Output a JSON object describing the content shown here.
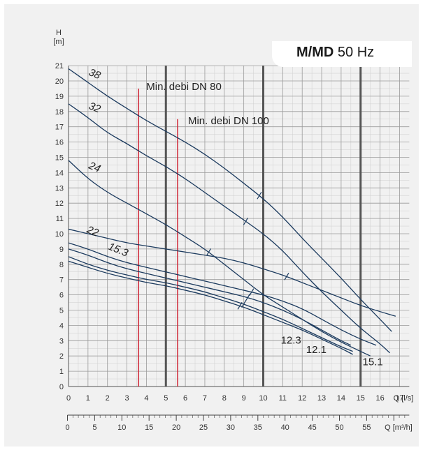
{
  "title": {
    "bold": "M/MD",
    "rest": "50 Hz"
  },
  "chart_data": {
    "type": "line",
    "y_axis": {
      "label_top": "H",
      "label_unit": "[m]",
      "min": 0,
      "max": 21,
      "ticks": [
        0,
        1,
        2,
        3,
        4,
        5,
        6,
        7,
        8,
        9,
        10,
        11,
        12,
        13,
        14,
        15,
        16,
        17,
        18,
        19,
        20,
        21
      ]
    },
    "x_axis_primary": {
      "label": "Q [l/s]",
      "min": 0,
      "max": 17.5,
      "ticks": [
        "0",
        "1",
        "2",
        "3",
        "4",
        "5",
        "6",
        "7",
        "8",
        "9",
        "10",
        "11",
        "12",
        "13",
        "14",
        "15",
        "16",
        "17"
      ]
    },
    "x_axis_secondary": {
      "label": "Q [m³/h]",
      "ticks": [
        "0",
        "5",
        "10",
        "15",
        "20",
        "25",
        "30",
        "35",
        "40",
        "45",
        "50",
        "55"
      ]
    },
    "min_flow_lines": [
      {
        "label": "Min. debi DN 80",
        "x": 3.6,
        "y_top": 19.5
      },
      {
        "label": "Min. debi DN 100",
        "x": 5.6,
        "y_top": 17.5
      }
    ],
    "series": [
      {
        "name": "38",
        "bep_x": 9.8,
        "x": [
          0,
          1,
          2,
          3,
          4,
          5,
          6,
          7,
          8,
          9,
          10,
          11,
          12,
          13,
          14,
          15,
          16,
          16.6
        ],
        "y": [
          20.8,
          19.9,
          19.0,
          18.2,
          17.4,
          16.7,
          16.0,
          15.2,
          14.3,
          13.3,
          12.3,
          11.1,
          9.7,
          8.4,
          7.1,
          5.7,
          4.4,
          3.6
        ]
      },
      {
        "name": "32",
        "bep_x": 9.1,
        "x": [
          0,
          1,
          2,
          3,
          4,
          5,
          6,
          7,
          8,
          9,
          10,
          11,
          12,
          13,
          14,
          15,
          16,
          16.5
        ],
        "y": [
          18.5,
          17.6,
          16.6,
          15.9,
          15.1,
          14.4,
          13.6,
          12.7,
          11.8,
          10.9,
          10.0,
          8.9,
          7.5,
          6.2,
          5.0,
          3.8,
          2.8,
          2.2
        ]
      },
      {
        "name": "24",
        "bep_x": 7.2,
        "x": [
          0,
          1,
          2,
          3,
          4,
          5,
          6,
          7,
          8,
          9,
          10,
          11,
          12,
          13,
          14,
          15,
          15.5
        ],
        "y": [
          14.8,
          13.6,
          12.7,
          12.0,
          11.3,
          10.6,
          9.8,
          9.0,
          8.0,
          7.0,
          6.0,
          5.2,
          4.4,
          3.6,
          2.9,
          2.3,
          2.0
        ]
      },
      {
        "name": "22",
        "bep_x": 11.2,
        "x": [
          0,
          1,
          2,
          3,
          4,
          5,
          6,
          7,
          8,
          9,
          10,
          11,
          12,
          13,
          14,
          15,
          16,
          16.8
        ],
        "y": [
          10.3,
          10.0,
          9.7,
          9.4,
          9.2,
          9.0,
          8.8,
          8.6,
          8.4,
          8.1,
          7.7,
          7.3,
          6.8,
          6.3,
          5.8,
          5.3,
          4.9,
          4.6
        ]
      },
      {
        "name": "15.3",
        "bep_x": 9.4,
        "x": [
          0,
          1,
          2,
          3,
          4,
          5,
          6,
          7,
          8,
          9,
          10,
          11,
          12,
          13,
          14,
          15,
          15.8
        ],
        "y": [
          9.4,
          9.0,
          8.5,
          8.1,
          7.8,
          7.5,
          7.2,
          6.9,
          6.6,
          6.3,
          6.0,
          5.6,
          5.1,
          4.4,
          3.7,
          3.1,
          2.7
        ]
      },
      {
        "name": "15.1",
        "bep_x": 9.2,
        "x": [
          0,
          1,
          2,
          3,
          4,
          5,
          6,
          7,
          8,
          9,
          10,
          11,
          12,
          13,
          14,
          14.5
        ],
        "y": [
          9.0,
          8.6,
          8.1,
          7.7,
          7.4,
          7.1,
          6.8,
          6.5,
          6.2,
          5.9,
          5.5,
          5.0,
          4.4,
          3.7,
          3.0,
          2.7
        ]
      },
      {
        "name": "12.3",
        "bep_x": 9.0,
        "x": [
          0,
          1,
          2,
          3,
          4,
          5,
          6,
          7,
          8,
          9,
          10,
          11,
          12,
          13,
          14,
          14.6
        ],
        "y": [
          8.5,
          8.0,
          7.6,
          7.3,
          7.0,
          6.8,
          6.5,
          6.2,
          5.8,
          5.4,
          4.9,
          4.4,
          3.8,
          3.2,
          2.6,
          2.3
        ]
      },
      {
        "name": "12.1",
        "bep_x": 8.8,
        "x": [
          0,
          1,
          2,
          3,
          4,
          5,
          6,
          7,
          8,
          9,
          10,
          11,
          12,
          13,
          14,
          14.6
        ],
        "y": [
          8.2,
          7.8,
          7.4,
          7.1,
          6.8,
          6.6,
          6.3,
          6.0,
          5.6,
          5.2,
          4.7,
          4.2,
          3.7,
          3.1,
          2.5,
          2.1
        ]
      }
    ],
    "curve_labels": [
      {
        "series": "38",
        "text": "38",
        "x": 1.0,
        "y": 20.4
      },
      {
        "series": "32",
        "text": "32",
        "x": 1.0,
        "y": 18.2
      },
      {
        "series": "24",
        "text": "24",
        "x": 1.0,
        "y": 14.3
      },
      {
        "series": "22",
        "text": "22",
        "x": 0.9,
        "y": 10.1
      },
      {
        "series": "15.3",
        "text": "15.3",
        "x": 2.0,
        "y": 9.0
      }
    ],
    "end_labels": [
      {
        "text": "12.3",
        "x": 10.9,
        "y": 2.8
      },
      {
        "text": "12.1",
        "x": 12.2,
        "y": 2.2
      },
      {
        "text": "15.1",
        "x": 15.1,
        "y": 1.4
      }
    ],
    "grid": true
  }
}
